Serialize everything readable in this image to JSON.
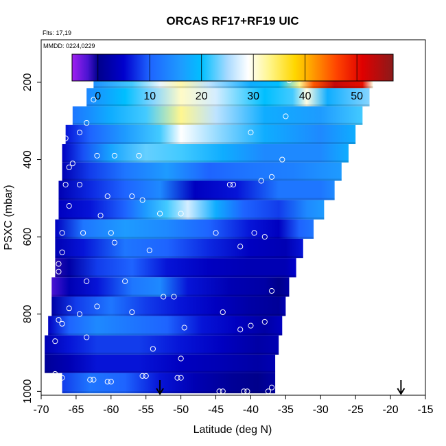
{
  "chart_data": {
    "type": "heatmap",
    "title": "ORCAS RF17+RF19 UIC",
    "flights_label": "Flts: 17,19",
    "dates_label": "MMDD: 0224,0229",
    "xlabel": "Latitude (deg N)",
    "ylabel": "PSXC (mbar)",
    "xlim": [
      -70,
      -15
    ],
    "ylim": [
      1010,
      90
    ],
    "y_reversed": true,
    "x_ticks": [
      "-70",
      "-65",
      "-60",
      "-55",
      "-50",
      "-45",
      "-40",
      "-35",
      "-30",
      "-25",
      "-20",
      "-15"
    ],
    "x_tick_values": [
      -70,
      -65,
      -60,
      -55,
      -50,
      -45,
      -40,
      -35,
      -30,
      -25,
      -20,
      -15
    ],
    "y_ticks": [
      "200",
      "400",
      "600",
      "800",
      "1000"
    ],
    "y_tick_values": [
      200,
      400,
      600,
      800,
      1000
    ],
    "colorbar": {
      "range": [
        -5,
        57
      ],
      "tick_labels": [
        "0",
        "10",
        "20",
        "30",
        "40",
        "50"
      ],
      "tick_values": [
        0,
        10,
        20,
        30,
        40,
        50
      ]
    },
    "colors": {
      "stops": [
        {
          "v": -5,
          "c": "#a020f0"
        },
        {
          "v": -2,
          "c": "#4b14d2"
        },
        {
          "v": 0,
          "c": "#00008b"
        },
        {
          "v": 5,
          "c": "#0000cd"
        },
        {
          "v": 10,
          "c": "#1e64ff"
        },
        {
          "v": 16,
          "c": "#1e9bff"
        },
        {
          "v": 20,
          "c": "#00bfff"
        },
        {
          "v": 25,
          "c": "#a8daff"
        },
        {
          "v": 29,
          "c": "#ffffff"
        },
        {
          "v": 33,
          "c": "#fff68f"
        },
        {
          "v": 38,
          "c": "#ffd700"
        },
        {
          "v": 41,
          "c": "#ffa500"
        },
        {
          "v": 46,
          "c": "#ff4500"
        },
        {
          "v": 51,
          "c": "#e00000"
        },
        {
          "v": 57,
          "c": "#8b1a1a"
        }
      ]
    },
    "layers": [
      {
        "p": 190,
        "xmin": -62.5,
        "xmax": -22.5,
        "anchors": [
          [
            -62.5,
            15
          ],
          [
            -57,
            22
          ],
          [
            -53,
            28
          ],
          [
            -50,
            32
          ],
          [
            -46,
            26
          ],
          [
            -40,
            18
          ],
          [
            -36,
            20
          ],
          [
            -33,
            33
          ],
          [
            -31,
            45
          ],
          [
            -28,
            53
          ],
          [
            -24,
            50
          ],
          [
            -22.5,
            30
          ]
        ]
      },
      {
        "p": 240,
        "xmin": -63.5,
        "xmax": -23.0,
        "anchors": [
          [
            -63.5,
            14
          ],
          [
            -58,
            20
          ],
          [
            -54,
            24
          ],
          [
            -50,
            31
          ],
          [
            -45,
            27
          ],
          [
            -38,
            20
          ],
          [
            -34,
            22
          ],
          [
            -32,
            30
          ],
          [
            -29,
            18
          ],
          [
            -23,
            24
          ]
        ]
      },
      {
        "p": 285,
        "xmin": -65.5,
        "xmax": -24.0,
        "anchors": [
          [
            -65.5,
            12
          ],
          [
            -60,
            18
          ],
          [
            -55,
            22
          ],
          [
            -50,
            33
          ],
          [
            -45,
            26
          ],
          [
            -38,
            18
          ],
          [
            -30,
            16
          ],
          [
            -24,
            22
          ]
        ]
      },
      {
        "p": 335,
        "xmin": -66.5,
        "xmax": -25.0,
        "anchors": [
          [
            -66.5,
            6
          ],
          [
            -63,
            10
          ],
          [
            -58,
            16
          ],
          [
            -53,
            22
          ],
          [
            -50,
            29
          ],
          [
            -44,
            24
          ],
          [
            -38,
            18
          ],
          [
            -30,
            14
          ],
          [
            -25,
            18
          ]
        ]
      },
      {
        "p": 385,
        "xmin": -67.0,
        "xmax": -26.0,
        "anchors": [
          [
            -67,
            4
          ],
          [
            -64,
            9
          ],
          [
            -60,
            17
          ],
          [
            -55,
            23
          ],
          [
            -50,
            22
          ],
          [
            -44,
            18
          ],
          [
            -38,
            14
          ],
          [
            -30,
            14
          ],
          [
            -26,
            18
          ]
        ]
      },
      {
        "p": 430,
        "xmin": -67.0,
        "xmax": -27.0,
        "anchors": [
          [
            -67,
            3
          ],
          [
            -63,
            8
          ],
          [
            -58,
            12
          ],
          [
            -52,
            16
          ],
          [
            -46,
            10
          ],
          [
            -40,
            12
          ],
          [
            -34,
            13
          ],
          [
            -27,
            16
          ]
        ]
      },
      {
        "p": 480,
        "xmin": -67.5,
        "xmax": -28.0,
        "anchors": [
          [
            -67.5,
            3
          ],
          [
            -63,
            7
          ],
          [
            -58,
            10
          ],
          [
            -53,
            14
          ],
          [
            -48,
            4
          ],
          [
            -42,
            6
          ],
          [
            -36,
            12
          ],
          [
            -30,
            12
          ],
          [
            -28,
            14
          ]
        ]
      },
      {
        "p": 530,
        "xmin": -67.5,
        "xmax": -29.5,
        "anchors": [
          [
            -67.5,
            4
          ],
          [
            -63,
            6
          ],
          [
            -58,
            10
          ],
          [
            -55,
            16
          ],
          [
            -52,
            22
          ],
          [
            -49,
            27
          ],
          [
            -45,
            18
          ],
          [
            -41,
            10
          ],
          [
            -36,
            8
          ],
          [
            -32,
            14
          ],
          [
            -29.5,
            16
          ]
        ]
      },
      {
        "p": 580,
        "xmin": -68.0,
        "xmax": -31.0,
        "anchors": [
          [
            -68,
            4
          ],
          [
            -64,
            12
          ],
          [
            -58,
            16
          ],
          [
            -52,
            14
          ],
          [
            -46,
            10
          ],
          [
            -40,
            6
          ],
          [
            -36,
            4
          ],
          [
            -33,
            10
          ],
          [
            -31,
            12
          ]
        ]
      },
      {
        "p": 630,
        "xmin": -68.0,
        "xmax": -32.5,
        "anchors": [
          [
            -68,
            3
          ],
          [
            -64,
            6
          ],
          [
            -58,
            12
          ],
          [
            -52,
            10
          ],
          [
            -46,
            7
          ],
          [
            -40,
            4
          ],
          [
            -35,
            3
          ],
          [
            -32.5,
            6
          ]
        ]
      },
      {
        "p": 680,
        "xmin": -68.0,
        "xmax": -33.5,
        "anchors": [
          [
            -68,
            -1
          ],
          [
            -66,
            2
          ],
          [
            -62,
            8
          ],
          [
            -57,
            10
          ],
          [
            -52,
            6
          ],
          [
            -46,
            4
          ],
          [
            -40,
            3
          ],
          [
            -35,
            3
          ],
          [
            -33.5,
            5
          ]
        ]
      },
      {
        "p": 730,
        "xmin": -68.5,
        "xmax": -34.5,
        "anchors": [
          [
            -68.5,
            -2
          ],
          [
            -66,
            3
          ],
          [
            -62,
            6
          ],
          [
            -57,
            12
          ],
          [
            -53,
            14
          ],
          [
            -49,
            6
          ],
          [
            -43,
            3
          ],
          [
            -38,
            2
          ],
          [
            -36,
            0
          ],
          [
            -34.5,
            2
          ]
        ]
      },
      {
        "p": 780,
        "xmin": -68.5,
        "xmax": -35.0,
        "anchors": [
          [
            -68.5,
            2
          ],
          [
            -65,
            8
          ],
          [
            -60,
            12
          ],
          [
            -55,
            8
          ],
          [
            -50,
            6
          ],
          [
            -45,
            4
          ],
          [
            -40,
            2
          ],
          [
            -36,
            1
          ],
          [
            -35,
            3
          ]
        ]
      },
      {
        "p": 830,
        "xmin": -69.0,
        "xmax": -35.5,
        "anchors": [
          [
            -69,
            4
          ],
          [
            -66,
            10
          ],
          [
            -62,
            14
          ],
          [
            -57,
            12
          ],
          [
            -52,
            10
          ],
          [
            -47,
            6
          ],
          [
            -42,
            4
          ],
          [
            -38,
            2
          ],
          [
            -35.5,
            4
          ]
        ]
      },
      {
        "p": 880,
        "xmin": -69.5,
        "xmax": -36.0,
        "anchors": [
          [
            -69.5,
            3
          ],
          [
            -66,
            6
          ],
          [
            -62,
            8
          ],
          [
            -56,
            8
          ],
          [
            -50,
            6
          ],
          [
            -44,
            4
          ],
          [
            -39,
            2
          ],
          [
            -36,
            3
          ]
        ]
      },
      {
        "p": 930,
        "xmin": -69.5,
        "xmax": -36.5,
        "anchors": [
          [
            -69.5,
            1
          ],
          [
            -66,
            3
          ],
          [
            -62,
            6
          ],
          [
            -56,
            6
          ],
          [
            -50,
            4
          ],
          [
            -44,
            3
          ],
          [
            -39,
            2
          ],
          [
            -36.5,
            3
          ]
        ]
      },
      {
        "p": 975,
        "xmin": -67.0,
        "xmax": -36.5,
        "anchors": [
          [
            -67,
            8
          ],
          [
            -63,
            12
          ],
          [
            -58,
            10
          ],
          [
            -53,
            6
          ],
          [
            -48,
            3
          ],
          [
            -43,
            1
          ],
          [
            -39,
            0
          ],
          [
            -36.5,
            2
          ]
        ]
      }
    ],
    "points": [
      [
        -62,
        178
      ],
      [
        -59,
        178
      ],
      [
        -56,
        178
      ],
      [
        -34.5,
        195
      ],
      [
        -34,
        190
      ],
      [
        -33.5,
        190
      ],
      [
        -33,
        190
      ],
      [
        -32.5,
        190
      ],
      [
        -32,
        190
      ],
      [
        -31,
        190
      ],
      [
        -30.5,
        190
      ],
      [
        -30,
        190
      ],
      [
        -29.5,
        190
      ],
      [
        -29,
        190
      ],
      [
        -28.5,
        190
      ],
      [
        -28,
        190
      ],
      [
        -27.5,
        190
      ],
      [
        -27,
        190
      ],
      [
        -26.5,
        190
      ],
      [
        -26,
        190
      ],
      [
        -25.5,
        190
      ],
      [
        -25,
        190
      ],
      [
        -24.5,
        190
      ],
      [
        -24,
        190
      ],
      [
        -23.5,
        190
      ],
      [
        -23,
        190
      ],
      [
        -62.5,
        245
      ],
      [
        -35,
        288
      ],
      [
        -63.5,
        305
      ],
      [
        -64.5,
        330
      ],
      [
        -66.5,
        345
      ],
      [
        -40,
        330
      ],
      [
        -62,
        390
      ],
      [
        -59.5,
        390
      ],
      [
        -56,
        390
      ],
      [
        -35.5,
        400
      ],
      [
        -65.5,
        410
      ],
      [
        -66,
        420
      ],
      [
        -64.5,
        465
      ],
      [
        -43,
        465
      ],
      [
        -42.5,
        465
      ],
      [
        -38.5,
        455
      ],
      [
        -37,
        445
      ],
      [
        -66.5,
        465
      ],
      [
        -60.5,
        495
      ],
      [
        -57,
        495
      ],
      [
        -55.5,
        505
      ],
      [
        -66,
        520
      ],
      [
        -53,
        540
      ],
      [
        -50,
        540
      ],
      [
        -61.5,
        545
      ],
      [
        -67,
        590
      ],
      [
        -64,
        590
      ],
      [
        -60,
        590
      ],
      [
        -45,
        590
      ],
      [
        -39.5,
        590
      ],
      [
        -38,
        600
      ],
      [
        -59.5,
        615
      ],
      [
        -54.5,
        635
      ],
      [
        -41.5,
        625
      ],
      [
        -67,
        640
      ],
      [
        -67.5,
        670
      ],
      [
        -67.5,
        690
      ],
      [
        -63.5,
        715
      ],
      [
        -58,
        715
      ],
      [
        -52.5,
        755
      ],
      [
        -51,
        755
      ],
      [
        -37,
        740
      ],
      [
        -66,
        785
      ],
      [
        -62,
        780
      ],
      [
        -57,
        795
      ],
      [
        -44,
        795
      ],
      [
        -67.5,
        815
      ],
      [
        -67,
        825
      ],
      [
        -64.5,
        800
      ],
      [
        -49.5,
        835
      ],
      [
        -41.5,
        840
      ],
      [
        -40,
        830
      ],
      [
        -38,
        820
      ],
      [
        -68,
        870
      ],
      [
        -63.5,
        860
      ],
      [
        -54,
        890
      ],
      [
        -50,
        915
      ],
      [
        -68,
        955
      ],
      [
        -67,
        965
      ],
      [
        -63,
        970
      ],
      [
        -62.5,
        970
      ],
      [
        -60.5,
        975
      ],
      [
        -60,
        975
      ],
      [
        -55.5,
        960
      ],
      [
        -55,
        960
      ],
      [
        -50.5,
        965
      ],
      [
        -50,
        965
      ],
      [
        -44.5,
        1000
      ],
      [
        -44,
        1000
      ],
      [
        -41,
        1000
      ],
      [
        -40.5,
        1000
      ],
      [
        -37.5,
        1000
      ],
      [
        -37,
        990
      ]
    ],
    "arrows": [
      {
        "x": -53,
        "p": 1010
      },
      {
        "x": -18.5,
        "p": 1010
      }
    ]
  }
}
